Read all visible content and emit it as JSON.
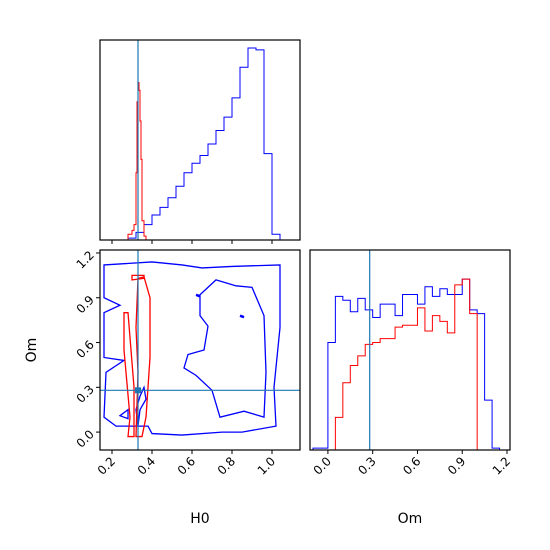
{
  "chart_data": {
    "type": "corner",
    "parameters": [
      "H0",
      "Om"
    ],
    "xlabel_H0": "H0",
    "xlabel_Om": "Om",
    "ylabel_Om": "Om",
    "truth": {
      "H0": 0.33,
      "Om": 0.28
    },
    "truth_color": "#1f77b4",
    "series": [
      {
        "color": "#0000ff",
        "hist_H0": {
          "bins": [
            0.2,
            0.24,
            0.28,
            0.32,
            0.36,
            0.4,
            0.44,
            0.48,
            0.52,
            0.56,
            0.6,
            0.64,
            0.68,
            0.72,
            0.76,
            0.8,
            0.84,
            0.88,
            0.92,
            0.96,
            1.0,
            1.04
          ],
          "heights": [
            0.0,
            0.0,
            0.01,
            0.04,
            0.08,
            0.13,
            0.17,
            0.22,
            0.28,
            0.35,
            0.4,
            0.44,
            0.5,
            0.57,
            0.64,
            0.74,
            0.9,
            1.0,
            0.99,
            0.45,
            0.03
          ]
        },
        "hist_Om": {
          "bins": [
            -0.1,
            -0.05,
            0.0,
            0.05,
            0.1,
            0.15,
            0.2,
            0.25,
            0.3,
            0.35,
            0.4,
            0.45,
            0.5,
            0.55,
            0.6,
            0.65,
            0.7,
            0.75,
            0.8,
            0.85,
            0.9,
            0.95,
            1.0,
            1.05,
            1.1,
            1.15
          ],
          "heights": [
            0.01,
            0.01,
            0.56,
            0.8,
            0.78,
            0.72,
            0.79,
            0.73,
            0.69,
            0.76,
            0.76,
            0.7,
            0.81,
            0.81,
            0.76,
            0.85,
            0.8,
            0.84,
            0.81,
            0.81,
            0.89,
            0.73,
            0.71,
            0.26,
            0.01
          ]
        },
        "contour_H0_Om": [
          {
            "level": "outer",
            "points": [
              [
                0.16,
                1.12
              ],
              [
                0.4,
                1.14
              ],
              [
                0.55,
                1.12
              ],
              [
                0.65,
                1.1
              ],
              [
                0.8,
                1.11
              ],
              [
                1.04,
                1.12
              ],
              [
                1.04,
                0.7
              ],
              [
                1.01,
                0.3
              ],
              [
                1.02,
                0.04
              ],
              [
                0.85,
                0.0
              ],
              [
                0.75,
                0.0
              ],
              [
                0.55,
                -0.02
              ],
              [
                0.4,
                -0.01
              ],
              [
                0.38,
                0.04
              ],
              [
                0.22,
                0.04
              ],
              [
                0.16,
                0.1
              ],
              [
                0.17,
                0.4
              ],
              [
                0.26,
                0.48
              ],
              [
                0.16,
                0.5
              ],
              [
                0.16,
                0.8
              ],
              [
                0.24,
                0.85
              ],
              [
                0.16,
                0.9
              ]
            ]
          },
          {
            "level": "inner",
            "points": [
              [
                0.64,
                0.92
              ],
              [
                0.72,
                1.02
              ],
              [
                0.82,
                0.98
              ],
              [
                0.9,
                0.97
              ],
              [
                0.96,
                0.78
              ],
              [
                0.97,
                0.4
              ],
              [
                0.96,
                0.1
              ],
              [
                0.86,
                0.14
              ],
              [
                0.74,
                0.1
              ],
              [
                0.7,
                0.28
              ],
              [
                0.62,
                0.38
              ],
              [
                0.56,
                0.43
              ],
              [
                0.58,
                0.52
              ],
              [
                0.66,
                0.55
              ],
              [
                0.68,
                0.71
              ],
              [
                0.64,
                0.78
              ]
            ]
          },
          {
            "level": "dot",
            "points": [
              [
                0.62,
                0.92
              ],
              [
                0.64,
                0.91
              ]
            ]
          },
          {
            "level": "dot",
            "points": [
              [
                0.84,
                0.78
              ],
              [
                0.86,
                0.77
              ]
            ]
          },
          {
            "level": "island",
            "points": [
              [
                0.24,
                0.11
              ],
              [
                0.28,
                0.15
              ],
              [
                0.28,
                0.09
              ]
            ]
          },
          {
            "level": "spike",
            "points": [
              [
                0.33,
                0.04
              ],
              [
                0.34,
                0.15
              ],
              [
                0.37,
                0.22
              ],
              [
                0.36,
                0.3
              ],
              [
                0.34,
                0.24
              ],
              [
                0.32,
                0.15
              ]
            ]
          }
        ]
      },
      {
        "color": "#ff0000",
        "hist_H0": {
          "bins": [
            0.28,
            0.3,
            0.31,
            0.32,
            0.325,
            0.33,
            0.335,
            0.34,
            0.345,
            0.35,
            0.36,
            0.37
          ],
          "heights": [
            0.03,
            0.05,
            0.08,
            0.35,
            0.72,
            0.82,
            0.78,
            0.62,
            0.42,
            0.1,
            0.02
          ]
        },
        "hist_Om": {
          "bins": [
            0.0,
            0.05,
            0.1,
            0.15,
            0.2,
            0.25,
            0.3,
            0.35,
            0.4,
            0.45,
            0.5,
            0.55,
            0.6,
            0.65,
            0.7,
            0.75,
            0.8,
            0.85,
            0.9,
            0.95,
            1.0
          ],
          "heights": [
            0.0,
            0.17,
            0.35,
            0.44,
            0.49,
            0.55,
            0.56,
            0.58,
            0.58,
            0.64,
            0.65,
            0.65,
            0.74,
            0.62,
            0.7,
            0.67,
            0.61,
            0.86,
            0.89,
            0.71
          ]
        },
        "contour_H0_Om": [
          {
            "level": "band",
            "points": [
              [
                0.32,
                -0.03
              ],
              [
                0.33,
                0.4
              ],
              [
                0.32,
                0.7
              ],
              [
                0.33,
                1.03
              ],
              [
                0.36,
                1.04
              ],
              [
                0.39,
                0.9
              ],
              [
                0.39,
                0.5
              ],
              [
                0.37,
                0.1
              ],
              [
                0.35,
                -0.03
              ]
            ]
          },
          {
            "level": "band_left",
            "points": [
              [
                0.26,
                0.8
              ],
              [
                0.26,
                0.55
              ],
              [
                0.29,
                0.1
              ],
              [
                0.28,
                -0.03
              ],
              [
                0.31,
                -0.03
              ],
              [
                0.31,
                0.3
              ],
              [
                0.28,
                0.8
              ]
            ]
          },
          {
            "level": "band_top",
            "points": [
              [
                0.3,
                1.05
              ],
              [
                0.3,
                1.02
              ],
              [
                0.36,
                1.03
              ],
              [
                0.36,
                1.05
              ]
            ]
          }
        ]
      }
    ],
    "ranges": {
      "H0": [
        0.14,
        1.14
      ],
      "Om": [
        -0.12,
        1.22
      ]
    },
    "ticks_H0": [
      "0.2",
      "0.4",
      "0.6",
      "0.8",
      "1.0"
    ],
    "ticks_Om": [
      "0.0",
      "0.3",
      "0.6",
      "0.9",
      "1.2"
    ]
  }
}
